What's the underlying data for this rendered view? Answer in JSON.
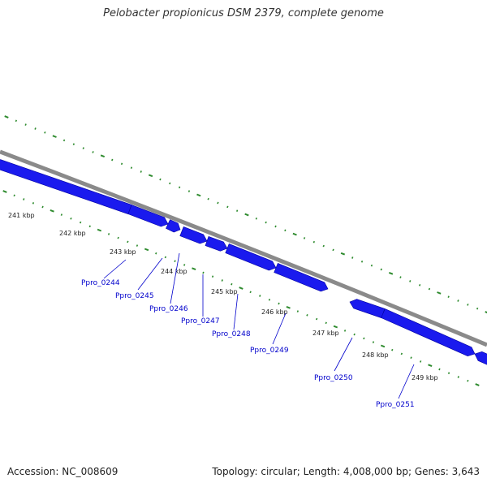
{
  "title": "Pelobacter propionicus DSM 2379, complete genome",
  "footer": {
    "accession": "Accession: NC_008609",
    "summary": "Topology: circular; Length: 4,008,000 bp; Genes: 3,643"
  },
  "colors": {
    "backbone": "#8a8a8a",
    "gene": "#1a1aee",
    "gene_edge": "#0000a0",
    "tick": "#2e8b2e",
    "label": "#0000cc",
    "leader": "#0000cc"
  },
  "scale": {
    "kbp_labels": [
      "241 kbp",
      "242 kbp",
      "243 kbp",
      "244 kbp",
      "245 kbp",
      "246 kbp",
      "247 kbp",
      "248 kbp",
      "249 kbp"
    ]
  },
  "genes": [
    {
      "name": "Ppro_0244"
    },
    {
      "name": "Ppro_0245"
    },
    {
      "name": "Ppro_0246"
    },
    {
      "name": "Ppro_0247"
    },
    {
      "name": "Ppro_0248"
    },
    {
      "name": "Ppro_0249"
    },
    {
      "name": "Ppro_0250"
    },
    {
      "name": "Ppro_0251"
    }
  ]
}
